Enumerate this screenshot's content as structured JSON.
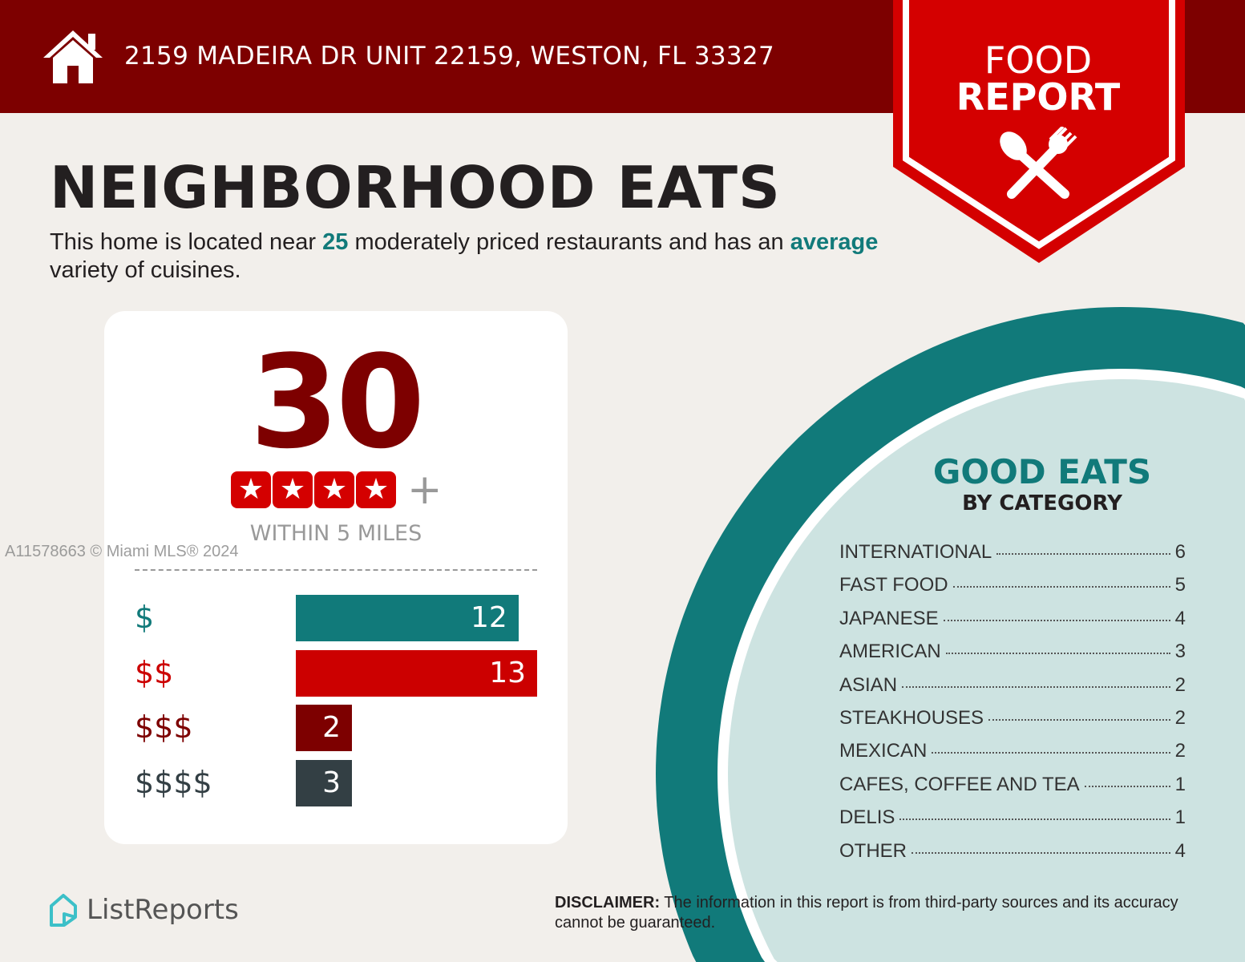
{
  "header": {
    "address": "2159 MADEIRA DR UNIT 22159, WESTON, FL 33327",
    "icon": "house-icon"
  },
  "banner": {
    "line1": "FOOD",
    "line2": "REPORT",
    "icon": "spoon-fork-icon"
  },
  "title": "NEIGHBORHOOD EATS",
  "subtitle": {
    "p1": "This home is located near ",
    "count": "25",
    "p2": " moderately priced restaurants and has an ",
    "variety": "average",
    "p3": " variety of cuisines."
  },
  "card": {
    "total": "30",
    "stars": 4,
    "plus": "+",
    "within": "WITHIN 5 MILES"
  },
  "chart_data": {
    "type": "bar",
    "orientation": "horizontal",
    "categories": [
      "$",
      "$$",
      "$$$",
      "$$$$"
    ],
    "values": [
      12,
      13,
      2,
      3
    ],
    "colors": [
      "#117a7a",
      "#cc0000",
      "#7d0000",
      "#333f44"
    ],
    "xlim": [
      0,
      13
    ]
  },
  "good_eats": {
    "title": "GOOD EATS",
    "subtitle": "BY CATEGORY",
    "items": [
      {
        "name": "INTERNATIONAL",
        "count": "6"
      },
      {
        "name": "FAST FOOD",
        "count": "5"
      },
      {
        "name": "JAPANESE",
        "count": "4"
      },
      {
        "name": "AMERICAN",
        "count": "3"
      },
      {
        "name": "ASIAN",
        "count": "2"
      },
      {
        "name": "STEAKHOUSES",
        "count": "2"
      },
      {
        "name": "MEXICAN",
        "count": "2"
      },
      {
        "name": "CAFES, COFFEE AND TEA",
        "count": "1"
      },
      {
        "name": "DELIS",
        "count": "1"
      },
      {
        "name": "OTHER",
        "count": "4"
      }
    ]
  },
  "footer": {
    "logo": "ListReports",
    "disclaimer_label": "DISCLAIMER:",
    "disclaimer": " The information in this report is from third-party sources and its accuracy cannot be guaranteed."
  },
  "watermark": "A11578663 © Miami MLS® 2024",
  "colors": {
    "maroon": "#7d0000",
    "red": "#d40000",
    "teal": "#117a7a",
    "light_teal": "#cde3e1"
  }
}
